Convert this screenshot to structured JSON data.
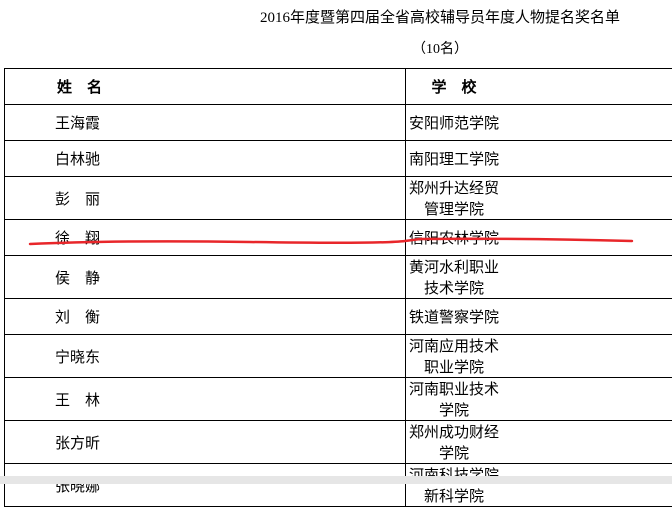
{
  "header": {
    "title": "2016年度暨第四届全省高校辅导员年度人物提名奖名单",
    "subtitle": "（10名）"
  },
  "table": {
    "columns": [
      "姓　名",
      "学　校"
    ],
    "rows": [
      [
        "王海霞",
        "安阳师范学院"
      ],
      [
        "白林驰",
        "南阳理工学院"
      ],
      [
        "彭　丽",
        "郑州升达经贸管理学院"
      ],
      [
        "徐　翔",
        "信阳农林学院"
      ],
      [
        "侯　静",
        "黄河水利职业技术学院"
      ],
      [
        "刘　衡",
        "铁道警察学院"
      ],
      [
        "宁晓东",
        "河南应用技术职业学院"
      ],
      [
        "王　林",
        "河南职业技术学院"
      ],
      [
        "张方昕",
        "郑州成功财经学院"
      ],
      [
        "张晓娜",
        "河南科技学院新科学院"
      ]
    ]
  }
}
